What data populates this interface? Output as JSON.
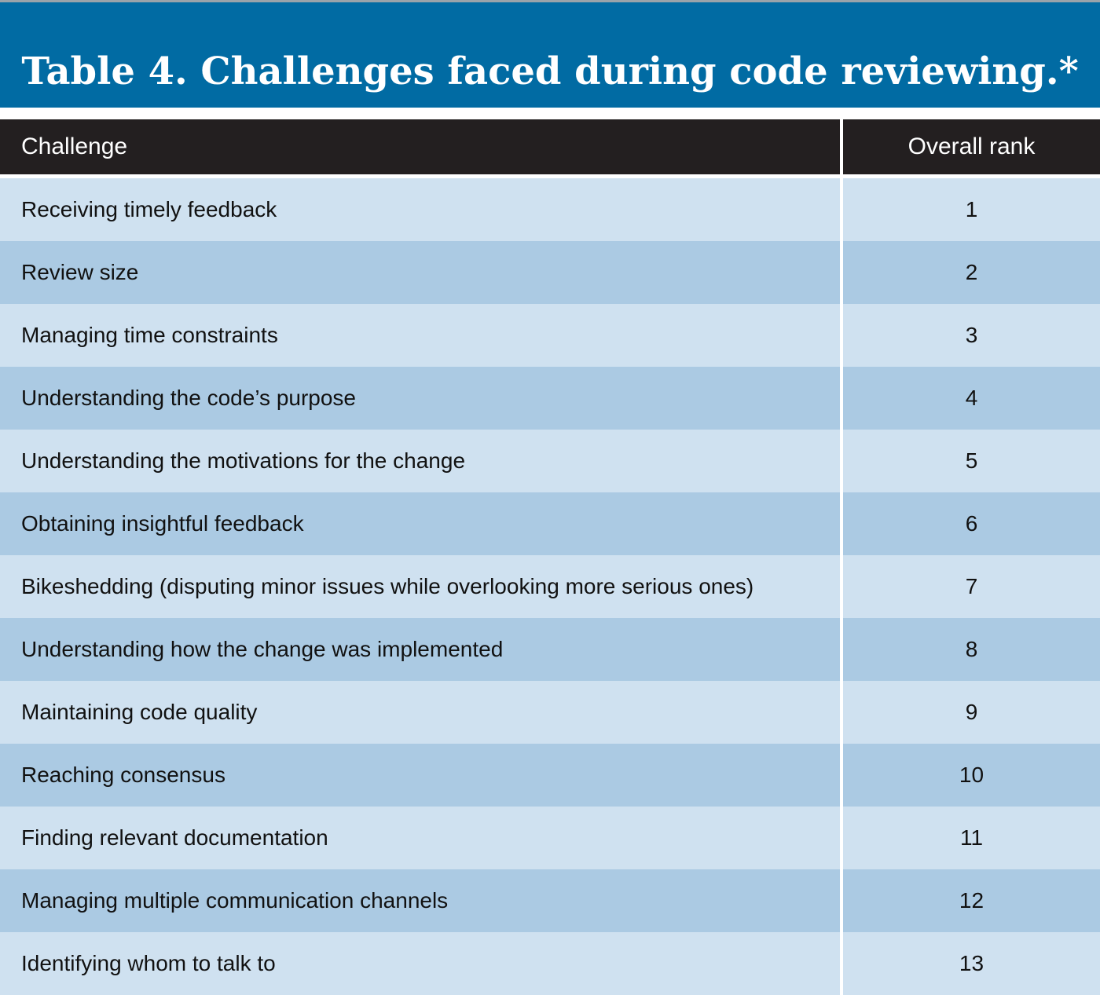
{
  "header": {
    "title": "Table 4. Challenges faced during code reviewing.*"
  },
  "table": {
    "columns": [
      "Challenge",
      "Overall rank"
    ],
    "rows": [
      [
        "Receiving timely feedback",
        1
      ],
      [
        "Review size",
        2
      ],
      [
        "Managing time constraints",
        3
      ],
      [
        "Understanding the code’s purpose",
        4
      ],
      [
        "Understanding the motivations for the change",
        5
      ],
      [
        "Obtaining insightful feedback",
        6
      ],
      [
        "Bikeshedding (disputing minor issues while overlooking more serious ones)",
        7
      ],
      [
        "Understanding how the change was implemented",
        8
      ],
      [
        "Maintaining code quality",
        9
      ],
      [
        "Reaching consensus",
        10
      ],
      [
        "Finding relevant documentation",
        11
      ],
      [
        "Managing multiple communication channels",
        12
      ],
      [
        "Identifying whom to talk to",
        13
      ]
    ]
  }
}
